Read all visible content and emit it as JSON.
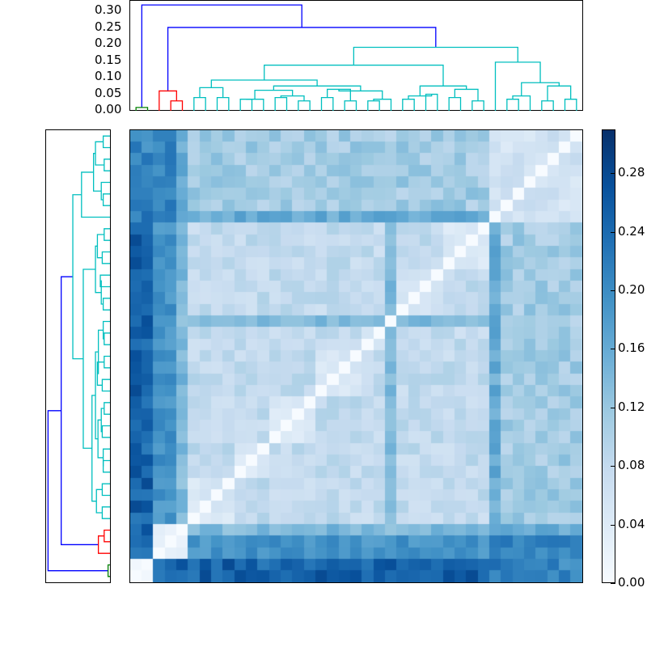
{
  "chart_data": {
    "type": "heatmap",
    "title": "",
    "description": "Clustered distance matrix with hierarchical-clustering dendrograms on top and left, Blues colormap",
    "n_leaves": 39,
    "colormap": "Blues",
    "colorbar": {
      "range": [
        0.0,
        0.31
      ],
      "ticks": [
        "0.00",
        "0.04",
        "0.08",
        "0.12",
        "0.16",
        "0.20",
        "0.24",
        "0.28"
      ]
    },
    "top_dendrogram": {
      "yaxis_ticks": [
        "0.00",
        "0.05",
        "0.10",
        "0.15",
        "0.20",
        "0.25",
        "0.30"
      ],
      "ylim": [
        0,
        0.33
      ],
      "cluster_colors": {
        "green": "#008000",
        "red": "#ff0000",
        "cyan": "#00bfbf",
        "root": "#0000ff"
      },
      "clusters": [
        {
          "name": "green",
          "leaves": [
            0,
            1
          ],
          "height": 0.01
        },
        {
          "name": "red",
          "leaves": [
            2,
            3,
            4
          ],
          "height": 0.06
        },
        {
          "name": "cyan",
          "leaves_from": 5,
          "leaves_to": 38,
          "height": 0.2
        }
      ],
      "root_merges": [
        {
          "join": [
            "red",
            "cyan"
          ],
          "height": 0.25
        },
        {
          "join": [
            "green",
            "red+cyan"
          ],
          "height": 0.32
        }
      ]
    },
    "block_structure": {
      "green_to_others": 0.27,
      "red_to_cyan": 0.19,
      "within_cyan_subA": 0.09,
      "within_cyan_subB": 0.06,
      "cyanA_to_cyanB": 0.12,
      "diagonal": 0.0
    }
  },
  "colorbar_ticks": [
    "0.00",
    "0.04",
    "0.08",
    "0.12",
    "0.16",
    "0.20",
    "0.24",
    "0.28"
  ],
  "top_axis_ticks": [
    "0.00",
    "0.05",
    "0.10",
    "0.15",
    "0.20",
    "0.25",
    "0.30"
  ]
}
